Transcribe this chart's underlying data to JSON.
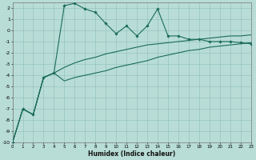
{
  "xlabel": "Humidex (Indice chaleur)",
  "background_color": "#b8ddd6",
  "grid_color": "#8cbfb8",
  "line_color": "#1a6b5a",
  "xlim": [
    0,
    23
  ],
  "ylim": [
    -10,
    2.5
  ],
  "ytick_vals": [
    2,
    1,
    0,
    -1,
    -2,
    -3,
    -4,
    -5,
    -6,
    -7,
    -8,
    -9,
    -10
  ],
  "ytick_labels": [
    "2",
    "1",
    "0",
    "-1",
    "-2",
    "-3",
    "-4",
    "-5",
    "-6",
    "-7",
    "-8",
    "-9",
    "-10"
  ],
  "xticks": [
    0,
    1,
    2,
    3,
    4,
    5,
    6,
    7,
    8,
    9,
    10,
    11,
    12,
    13,
    14,
    15,
    16,
    17,
    18,
    19,
    20,
    21,
    22,
    23
  ],
  "s1_x": [
    0,
    1,
    2,
    3,
    4,
    5,
    6,
    7,
    8,
    9,
    10,
    11,
    12,
    13,
    14,
    15,
    16,
    17,
    18,
    19,
    20,
    21,
    22,
    23
  ],
  "s1_y": [
    -10.0,
    -7.0,
    -7.5,
    -4.2,
    -3.8,
    2.2,
    2.4,
    1.9,
    1.6,
    0.6,
    -0.3,
    0.4,
    -0.5,
    0.4,
    1.9,
    -0.5,
    -0.5,
    -0.8,
    -0.8,
    -1.0,
    -1.0,
    -1.0,
    -1.1,
    -1.2
  ],
  "s2_x": [
    0,
    1,
    2,
    3,
    4,
    5,
    6,
    7,
    8,
    9,
    10,
    11,
    12,
    13,
    14,
    15,
    16,
    17,
    18,
    19,
    20,
    21,
    22,
    23
  ],
  "s2_y": [
    -10.0,
    -7.0,
    -7.5,
    -4.2,
    -3.8,
    -3.3,
    -2.9,
    -2.6,
    -2.4,
    -2.1,
    -1.9,
    -1.7,
    -1.5,
    -1.3,
    -1.2,
    -1.1,
    -1.0,
    -0.9,
    -0.8,
    -0.7,
    -0.6,
    -0.5,
    -0.5,
    -0.4
  ],
  "s3_x": [
    0,
    1,
    2,
    3,
    4,
    5,
    6,
    7,
    8,
    9,
    10,
    11,
    12,
    13,
    14,
    15,
    16,
    17,
    18,
    19,
    20,
    21,
    22,
    23
  ],
  "s3_y": [
    -10.0,
    -7.0,
    -7.5,
    -4.2,
    -3.8,
    -4.5,
    -4.2,
    -4.0,
    -3.8,
    -3.6,
    -3.3,
    -3.1,
    -2.9,
    -2.7,
    -2.4,
    -2.2,
    -2.0,
    -1.8,
    -1.7,
    -1.5,
    -1.4,
    -1.3,
    -1.2,
    -1.1
  ]
}
